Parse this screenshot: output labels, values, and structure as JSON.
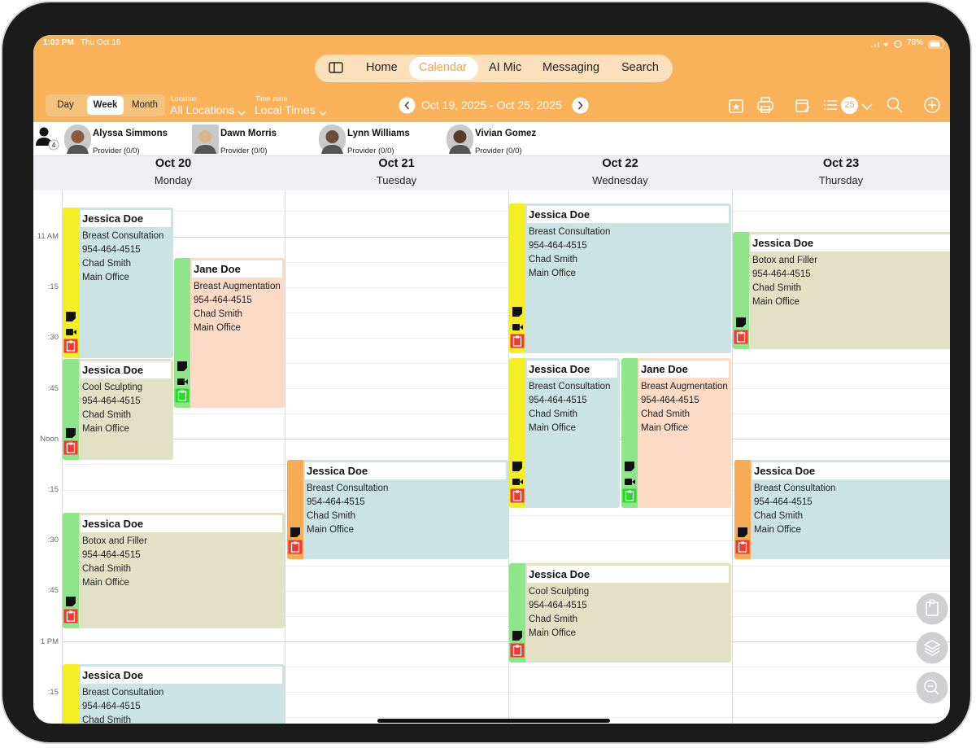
{
  "status_bar": {
    "time": "1:03 PM",
    "date": "Thu Oct 16",
    "battery": "78%"
  },
  "nav": {
    "items": [
      "Home",
      "Calendar",
      "AI Mic",
      "Messaging",
      "Search"
    ]
  },
  "toolbar": {
    "view_modes": [
      "Day",
      "Week",
      "Month"
    ],
    "location_label": "Location",
    "location_value": "All Locations",
    "timezone_label": "Time zone",
    "timezone_value": "Local Times",
    "date_range": "Oct 19, 2025 - Oct 25, 2025",
    "list_badge": "25"
  },
  "providers": {
    "count": "4",
    "list": [
      {
        "name": "Alyssa Simmons",
        "role": "Provider (0/0)"
      },
      {
        "name": "Dawn Morris",
        "role": "Provider (0/0)"
      },
      {
        "name": "Lynn Williams",
        "role": "Provider (0/0)"
      },
      {
        "name": "Vivian Gomez",
        "role": "Provider (0/0)"
      }
    ]
  },
  "days": [
    {
      "date": "Oct 20",
      "weekday": "Monday"
    },
    {
      "date": "Oct 21",
      "weekday": "Tuesday"
    },
    {
      "date": "Oct 22",
      "weekday": "Wednesday"
    },
    {
      "date": "Oct 23",
      "weekday": "Thursday"
    }
  ],
  "time_labels": [
    "11 AM",
    ":15",
    ":30",
    ":45",
    "Noon",
    ":15",
    ":30",
    ":45",
    "1 PM",
    ":15"
  ],
  "appointments": [
    {
      "patient": "Jessica Doe",
      "service": "Breast Consultation",
      "phone": "954-464-4515",
      "provider": "Chad Smith",
      "location": "Main Office"
    },
    {
      "patient": "Jane Doe",
      "service": "Breast Augmentation",
      "phone": "954-464-4515",
      "provider": "Chad Smith",
      "location": "Main Office"
    },
    {
      "patient": "Jessica Doe",
      "service": "Cool Sculpting",
      "phone": "954-464-4515",
      "provider": "Chad Smith",
      "location": "Main Office"
    },
    {
      "patient": "Jessica Doe",
      "service": "Botox and Filler",
      "phone": "954-464-4515",
      "provider": "Chad Smith",
      "location": "Main Office"
    },
    {
      "patient": "Jessica Doe",
      "service": "Breast Consultation",
      "phone": "954-464-4515",
      "provider": "Chad Smith",
      "location": "Main Office"
    },
    {
      "patient": "Jessica Doe",
      "service": "Breast Consultation",
      "phone": "954-464-4515",
      "provider": "Chad Smith",
      "location": "Main Office"
    },
    {
      "patient": "Jessica Doe",
      "service": "Breast Consultation",
      "phone": "954-464-4515",
      "provider": "Chad Smith",
      "location": "Main Office"
    },
    {
      "patient": "Jessica Doe",
      "service": "Breast Consultation",
      "phone": "954-464-4515",
      "provider": "Chad Smith",
      "location": "Main Office"
    },
    {
      "patient": "Jane Doe",
      "service": "Breast Augmentation",
      "phone": "954-464-4515",
      "provider": "Chad Smith",
      "location": "Main Office"
    },
    {
      "patient": "Jessica Doe",
      "service": "Cool Sculpting",
      "phone": "954-464-4515",
      "provider": "Chad Smith",
      "location": "Main Office"
    },
    {
      "patient": "Jessica Doe",
      "service": "Botox and Filler",
      "phone": "954-464-4515",
      "provider": "Chad Smith",
      "location": "Main Office"
    },
    {
      "patient": "Jessica Doe",
      "service": "Breast Consultation",
      "phone": "954-464-4515",
      "provider": "Chad Smith",
      "location": "Main Office"
    }
  ],
  "fab_label": "P"
}
